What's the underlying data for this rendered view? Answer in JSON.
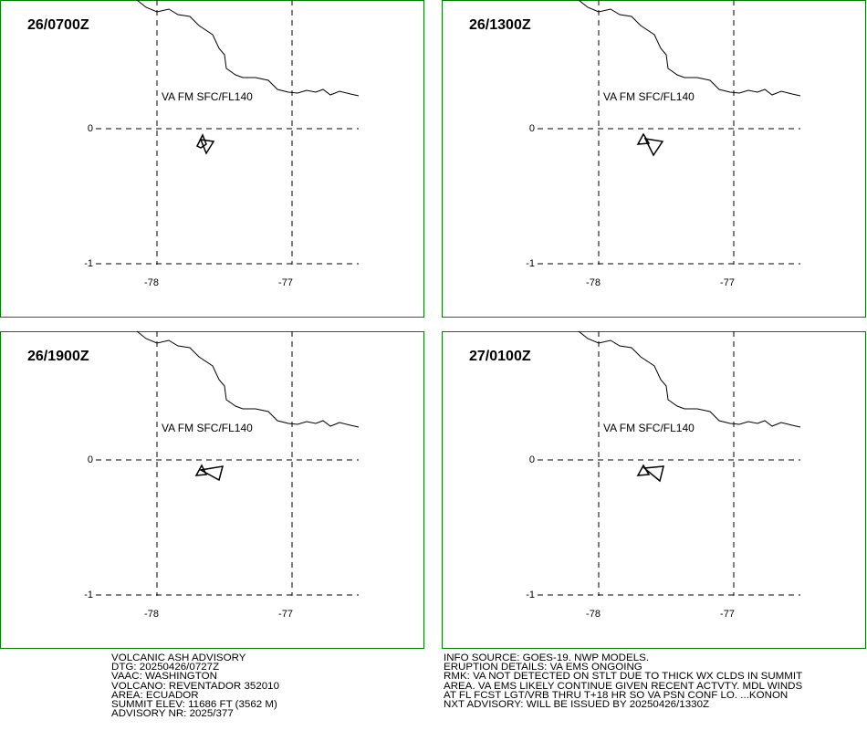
{
  "panels": [
    {
      "time": "26/0700Z",
      "layer": "VA FM SFC/FL140",
      "lat_labels": [
        "0",
        "-1"
      ],
      "lon_labels": [
        "-78",
        "-77"
      ]
    },
    {
      "time": "26/1300Z",
      "layer": "VA FM SFC/FL140",
      "lat_labels": [
        "0",
        "-1"
      ],
      "lon_labels": [
        "-78",
        "-77"
      ]
    },
    {
      "time": "26/1900Z",
      "layer": "VA FM SFC/FL140",
      "lat_labels": [
        "0",
        "-1"
      ],
      "lon_labels": [
        "-78",
        "-77"
      ]
    },
    {
      "time": "27/0100Z",
      "layer": "VA FM SFC/FL140",
      "lat_labels": [
        "0",
        "-1"
      ],
      "lon_labels": [
        "-78",
        "-77"
      ]
    }
  ],
  "advisory_left": [
    "VOLCANIC ASH ADVISORY",
    "DTG: 20250426/0727Z",
    "VAAC: WASHINGTON",
    "VOLCANO: REVENTADOR 352010",
    "AREA: ECUADOR",
    "SUMMIT ELEV: 11686 FT (3562 M)",
    "ADVISORY NR: 2025/377"
  ],
  "advisory_right": [
    "INFO SOURCE: GOES-19. NWP MODELS.",
    "ERUPTION DETAILS: VA EMS ONGOING",
    "RMK: VA NOT DETECTED ON STLT DUE TO THICK WX CLDS IN SUMMIT",
    "AREA. VA EMS LIKELY CONTINUE GIVEN RECENT ACTVTY. MDL WINDS",
    "AT FL FCST LGT/VRB THRU T+18 HR SO VA PSN CONF LO. ...KONON",
    "NXT ADVISORY: WILL BE ISSUED BY 20250426/1330Z"
  ]
}
